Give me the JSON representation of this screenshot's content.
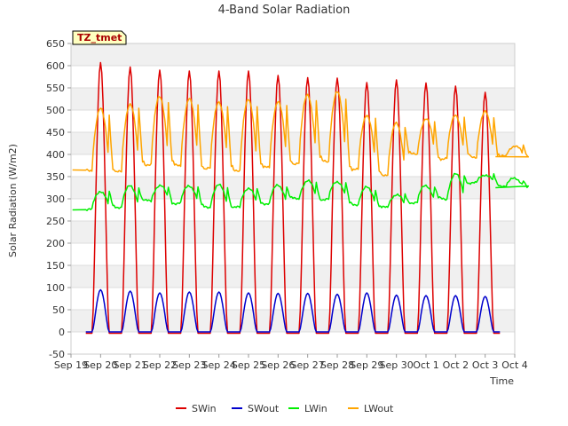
{
  "chart_data": {
    "type": "line",
    "title": "4-Band Solar Radiation",
    "xlabel": "Time",
    "ylabel": "Solar Radiation (W/m2)",
    "site_label": "TZ_tmet",
    "ylim": [
      -50,
      650
    ],
    "yticks": [
      -50,
      0,
      50,
      100,
      150,
      200,
      250,
      300,
      350,
      400,
      450,
      500,
      550,
      600,
      650
    ],
    "xlim": [
      0,
      15
    ],
    "xticks": [
      {
        "label": "Sep 19",
        "day": 0
      },
      {
        "label": "Sep 20",
        "day": 1
      },
      {
        "label": "Sep 21",
        "day": 2
      },
      {
        "label": "Sep 22",
        "day": 3
      },
      {
        "label": "Sep 23",
        "day": 4
      },
      {
        "label": "Sep 24",
        "day": 5
      },
      {
        "label": "Sep 25",
        "day": 6
      },
      {
        "label": "Sep 26",
        "day": 7
      },
      {
        "label": "Sep 27",
        "day": 8
      },
      {
        "label": "Sep 28",
        "day": 9
      },
      {
        "label": "Sep 29",
        "day": 10
      },
      {
        "label": "Sep 30",
        "day": 11
      },
      {
        "label": "Oct 1",
        "day": 12
      },
      {
        "label": "Oct 2",
        "day": 13
      },
      {
        "label": "Oct 3",
        "day": 14
      },
      {
        "label": "Oct 4",
        "day": 15
      }
    ],
    "grid": true,
    "legend_position": "bottom",
    "series": [
      {
        "name": "SWin",
        "color": "#dd0000",
        "kind": "daily_peak",
        "peaks": [
          607,
          597,
          590,
          588,
          588,
          588,
          578,
          573,
          572,
          562,
          568,
          561,
          554,
          540
        ],
        "night": -3
      },
      {
        "name": "SWout",
        "color": "#0000cc",
        "kind": "daily_peak",
        "peaks": [
          95,
          92,
          88,
          90,
          90,
          88,
          87,
          87,
          85,
          88,
          83,
          82,
          82,
          80
        ],
        "night": 0
      },
      {
        "name": "LWin",
        "color": "#00ee00",
        "kind": "daily_band",
        "night": [
          275,
          282,
          295,
          290,
          282,
          280,
          290,
          300,
          298,
          288,
          280,
          292,
          300,
          335,
          330
        ],
        "day": [
          318,
          328,
          330,
          330,
          330,
          325,
          330,
          340,
          340,
          325,
          310,
          330,
          355,
          355,
          345
        ],
        "end": 325
      },
      {
        "name": "LWout",
        "color": "#ffa500",
        "kind": "daily_band",
        "night": [
          365,
          360,
          378,
          375,
          368,
          365,
          370,
          380,
          385,
          365,
          355,
          400,
          390,
          395,
          395
        ],
        "day": [
          502,
          515,
          530,
          525,
          520,
          522,
          520,
          535,
          540,
          490,
          470,
          480,
          490,
          495,
          420
        ],
        "end": 395
      }
    ]
  }
}
